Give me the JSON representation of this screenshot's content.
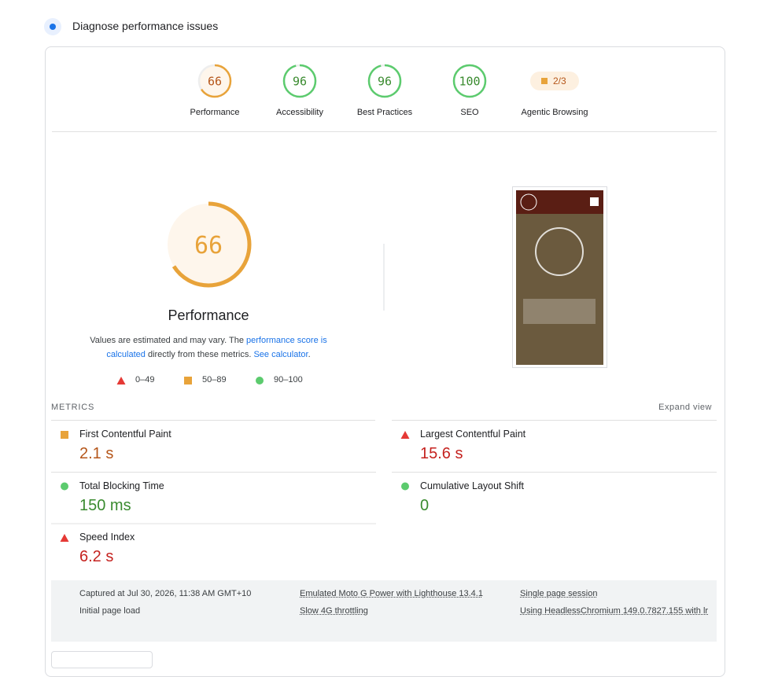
{
  "header": {
    "title": "Diagnose performance issues"
  },
  "categories": [
    {
      "score": 66,
      "label": "Performance",
      "rating": "average"
    },
    {
      "score": 96,
      "label": "Accessibility",
      "rating": "pass"
    },
    {
      "score": 96,
      "label": "Best Practices",
      "rating": "pass"
    },
    {
      "score": 100,
      "label": "SEO",
      "rating": "pass"
    }
  ],
  "agentic": {
    "score": "2/3",
    "label": "Agentic Browsing"
  },
  "main": {
    "score": 66,
    "rating": "average",
    "label": "Performance",
    "note": [
      "Values are estimated and may vary. The ",
      "performance score is calculated",
      " directly from these metrics. ",
      "See calculator",
      "."
    ]
  },
  "legend": [
    {
      "label": "0–49",
      "rating": "fail"
    },
    {
      "label": "50–89",
      "rating": "average"
    },
    {
      "label": "90–100",
      "rating": "pass"
    }
  ],
  "metrics": {
    "title": "METRICS",
    "expand": "Expand view",
    "items": [
      {
        "name": "First Contentful Paint",
        "value": "2.1 s",
        "rating": "average"
      },
      {
        "name": "Largest Contentful Paint",
        "value": "15.6 s",
        "rating": "fail"
      },
      {
        "name": "Total Blocking Time",
        "value": "150 ms",
        "rating": "pass"
      },
      {
        "name": "Cumulative Layout Shift",
        "value": "0",
        "rating": "pass"
      },
      {
        "name": "Speed Index",
        "value": "6.2 s",
        "rating": "fail"
      }
    ]
  },
  "footer": [
    "Captured at Jul 30, 2026, 11:38 AM GMT+10",
    "Emulated Moto G Power with Lighthouse 13.4.1",
    "Single page session",
    "Initial page load",
    "Slow 4G throttling",
    "Using HeadlessChromium 149.0.7827.155 with lr"
  ]
}
